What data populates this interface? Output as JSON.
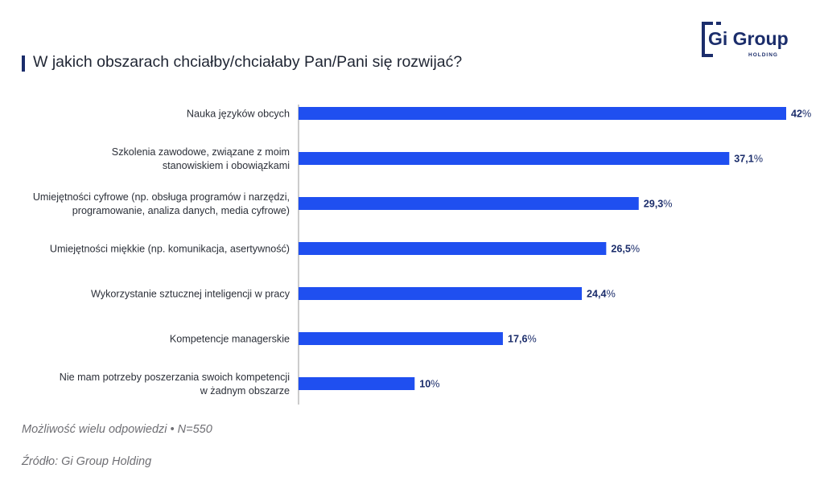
{
  "title": "W jakich obszarach chciałby/chciałaby Pan/Pani się rozwijać?",
  "logo": {
    "main": "Gi Group",
    "sub": "HOLDING"
  },
  "note": "Możliwość wielu odpowiedzi • N=550",
  "source": "Źródło: Gi Group Holding",
  "colors": {
    "bar": "#1f4ff0",
    "value": "#1b2d6b",
    "axis": "#9a9a9a",
    "logo": "#1b2d6b"
  },
  "chart_data": {
    "type": "bar",
    "orientation": "horizontal",
    "categories": [
      [
        "Nauka języków obcych"
      ],
      [
        "Szkolenia zawodowe, związane z moim",
        "stanowiskiem i obowiązkami"
      ],
      [
        "Umiejętności cyfrowe (np. obsługa programów i narzędzi,",
        "programowanie, analiza danych, media cyfrowe)"
      ],
      [
        "Umiejętności miękkie (np. komunikacja, asertywność)"
      ],
      [
        "Wykorzystanie sztucznej inteligencji w pracy"
      ],
      [
        "Kompetencje managerskie"
      ],
      [
        "Nie mam potrzeby poszerzania swoich kompetencji",
        "w żadnym obszarze"
      ]
    ],
    "values": [
      42,
      37.1,
      29.3,
      26.5,
      24.4,
      17.6,
      10
    ],
    "value_labels": [
      "42",
      "37,1",
      "29,3",
      "26,5",
      "24,4",
      "17,6",
      "10"
    ],
    "unit": "%",
    "xlim": [
      0,
      42
    ],
    "legend": "none",
    "grid": false
  }
}
